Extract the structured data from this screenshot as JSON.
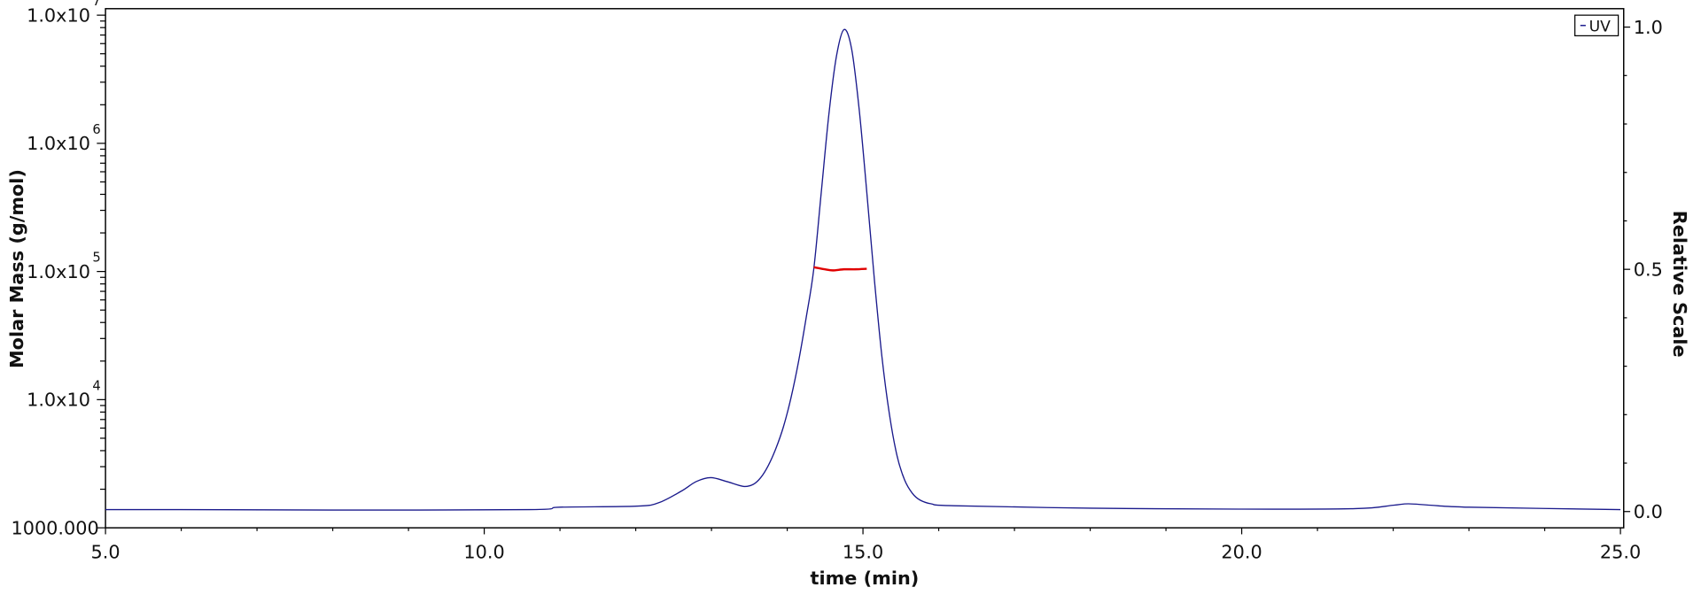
{
  "chart_data": {
    "type": "line",
    "xlabel": "time (min)",
    "ylabel_left": "Molar Mass (g/mol)",
    "ylabel_right": "Relative Scale",
    "xlim": [
      5.0,
      25.0
    ],
    "ylim_left": [
      1000,
      10000000
    ],
    "ylim_right": [
      0.0,
      1.0
    ],
    "left_scale": "log",
    "grid": false,
    "legend_placement": "top-right",
    "x_ticks": [
      "5.0",
      "10.0",
      "15.0",
      "20.0",
      "25.0"
    ],
    "x_tick_values": [
      5,
      10,
      15,
      20,
      25
    ],
    "left_ticks": [
      {
        "value": 1000,
        "base": "1000.000",
        "exp": ""
      },
      {
        "value": 10000,
        "base": "1.0x10",
        "exp": "4"
      },
      {
        "value": 100000,
        "base": "1.0x10",
        "exp": "5"
      },
      {
        "value": 1000000,
        "base": "1.0x10",
        "exp": "6"
      },
      {
        "value": 10000000,
        "base": "1.0x10",
        "exp": "7"
      }
    ],
    "right_ticks": [
      {
        "value": 0.0,
        "label": "0.0"
      },
      {
        "value": 0.5,
        "label": "0.5"
      },
      {
        "value": 1.0,
        "label": "1.0"
      }
    ],
    "series": [
      {
        "name": "UV",
        "axis": "right",
        "color": "#1a1a8c",
        "x": [
          5.0,
          6.0,
          8.0,
          10.6,
          11.0,
          12.0,
          12.3,
          12.6,
          12.8,
          12.99,
          13.2,
          13.42,
          13.55,
          13.65,
          13.75,
          13.85,
          13.95,
          14.05,
          14.15,
          14.25,
          14.35,
          14.45,
          14.55,
          14.65,
          14.75,
          14.85,
          14.95,
          15.05,
          15.15,
          15.25,
          15.35,
          15.45,
          15.55,
          15.65,
          15.75,
          15.9,
          16.2,
          18.0,
          20.0,
          21.5,
          22.0,
          22.2,
          22.5,
          23.0,
          25.0
        ],
        "y": [
          0.004,
          0.004,
          0.003,
          0.004,
          0.009,
          0.011,
          0.018,
          0.042,
          0.062,
          0.07,
          0.062,
          0.052,
          0.056,
          0.07,
          0.095,
          0.13,
          0.175,
          0.235,
          0.31,
          0.4,
          0.5,
          0.66,
          0.82,
          0.94,
          0.995,
          0.955,
          0.83,
          0.66,
          0.48,
          0.32,
          0.2,
          0.115,
          0.065,
          0.038,
          0.024,
          0.016,
          0.012,
          0.007,
          0.005,
          0.006,
          0.013,
          0.016,
          0.013,
          0.009,
          0.004
        ]
      },
      {
        "axis": "left",
        "color": "#e00000",
        "x": [
          14.35,
          14.5,
          14.6,
          14.75,
          14.9,
          15.05
        ],
        "y": [
          108000,
          104000,
          102000,
          104000,
          104000,
          105000
        ]
      }
    ]
  }
}
